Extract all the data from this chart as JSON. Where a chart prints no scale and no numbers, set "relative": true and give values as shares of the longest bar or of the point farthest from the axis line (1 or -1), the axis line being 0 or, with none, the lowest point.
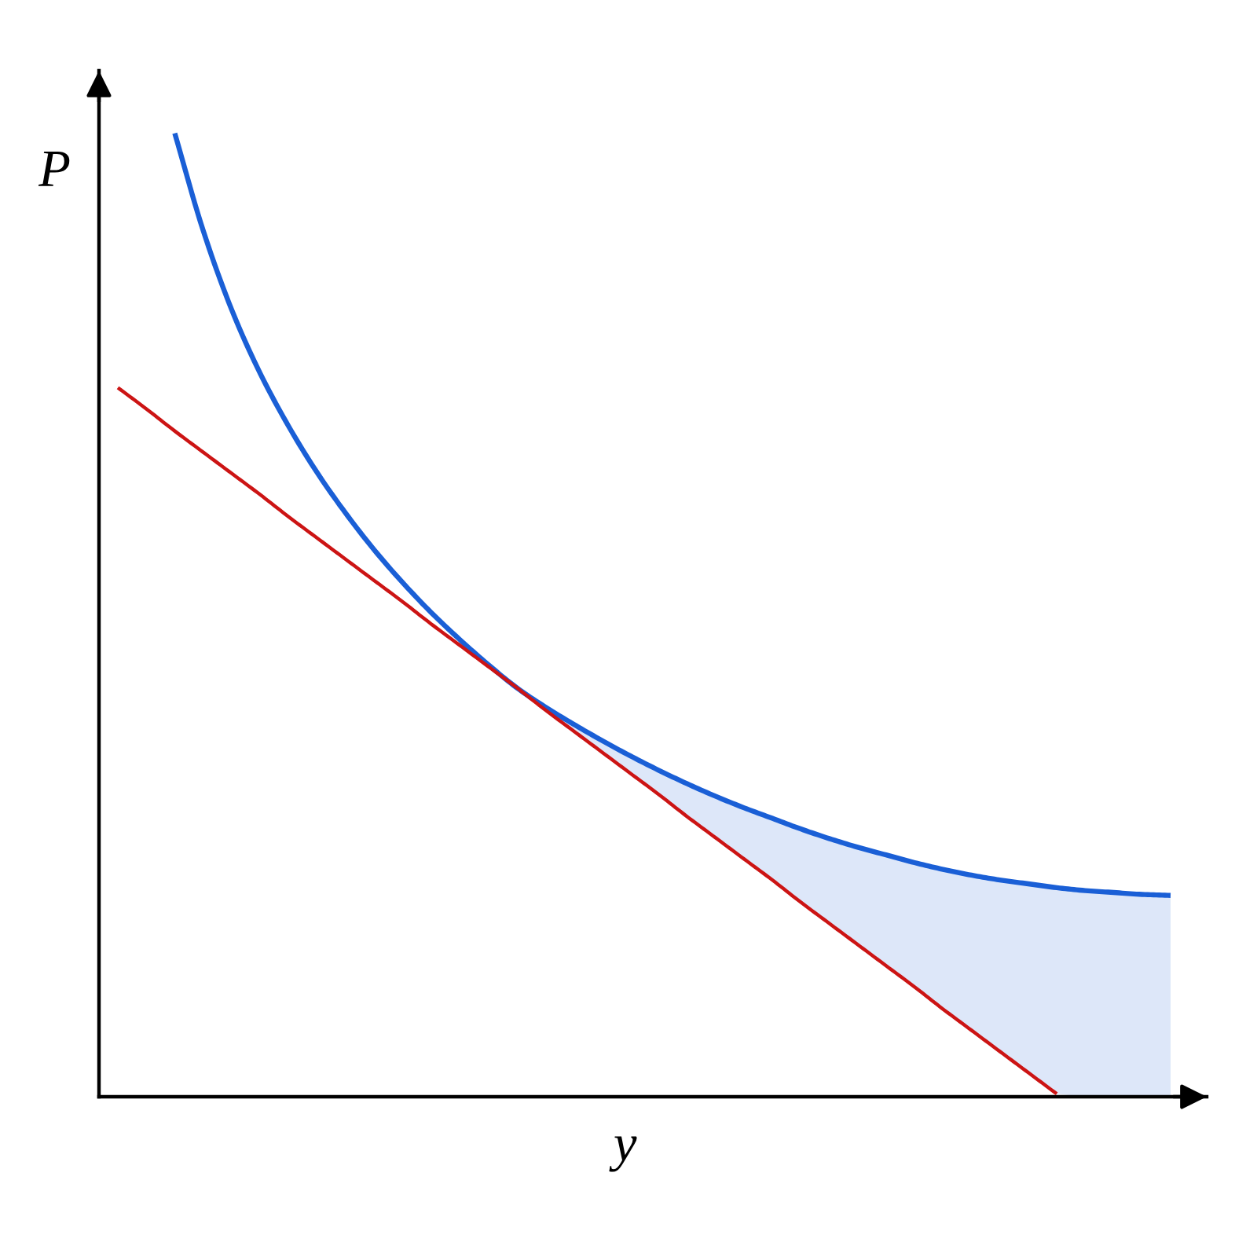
{
  "chart_data": {
    "type": "line",
    "xlabel": "y",
    "ylabel": "P",
    "relative": true,
    "categories": [
      null,
      null,
      null,
      null,
      null,
      null,
      null,
      null,
      null,
      null,
      null,
      null,
      null,
      null,
      null,
      null,
      null,
      null,
      null,
      null,
      null,
      null,
      null,
      null,
      null,
      null,
      null,
      null,
      null,
      null,
      null,
      null,
      null,
      null,
      null,
      null,
      null,
      null
    ],
    "series": [
      {
        "color": "#1a5fd6",
        "values": [
          null,
          null,
          1.0,
          0.899,
          0.817,
          0.751,
          0.696,
          0.648,
          0.606,
          0.568,
          0.534,
          0.503,
          0.475,
          0.449,
          0.425,
          0.405,
          0.387,
          0.37,
          0.354,
          0.339,
          0.325,
          0.312,
          0.3,
          0.289,
          0.278,
          0.268,
          0.259,
          0.251,
          0.243,
          0.236,
          0.23,
          0.225,
          0.221,
          0.217,
          0.214,
          0.212,
          0.21,
          0.209
        ],
        "lower": [
          null,
          null,
          null,
          null,
          null,
          null,
          null,
          null,
          null,
          null,
          null,
          null,
          null,
          null,
          0.425,
          0.402,
          0.38,
          0.358,
          0.336,
          0.314,
          0.291,
          0.269,
          0.247,
          0.225,
          0.202,
          0.18,
          0.158,
          0.136,
          0.114,
          0.091,
          0.069,
          0.047,
          0.025,
          0.003,
          0,
          0,
          0,
          0
        ],
        "upper": [
          null,
          null,
          null,
          null,
          null,
          null,
          null,
          null,
          null,
          null,
          null,
          null,
          null,
          null,
          0.425,
          0.405,
          0.387,
          0.37,
          0.354,
          0.339,
          0.325,
          0.312,
          0.3,
          0.289,
          0.278,
          0.268,
          0.259,
          0.251,
          0.243,
          0.236,
          0.23,
          0.225,
          0.221,
          0.217,
          0.214,
          0.212,
          0.21,
          0.209
        ]
      },
      {
        "color": "#cc1414",
        "values": [
          0.736,
          0.714,
          0.691,
          0.669,
          0.647,
          0.625,
          0.602,
          0.58,
          0.558,
          0.536,
          0.514,
          0.491,
          0.469,
          0.447,
          0.425,
          0.402,
          0.38,
          0.358,
          0.336,
          0.314,
          0.291,
          0.269,
          0.247,
          0.225,
          0.202,
          0.18,
          0.158,
          0.136,
          0.114,
          0.091,
          0.069,
          0.047,
          0.025,
          0.003,
          null,
          null,
          null,
          null
        ]
      }
    ]
  }
}
